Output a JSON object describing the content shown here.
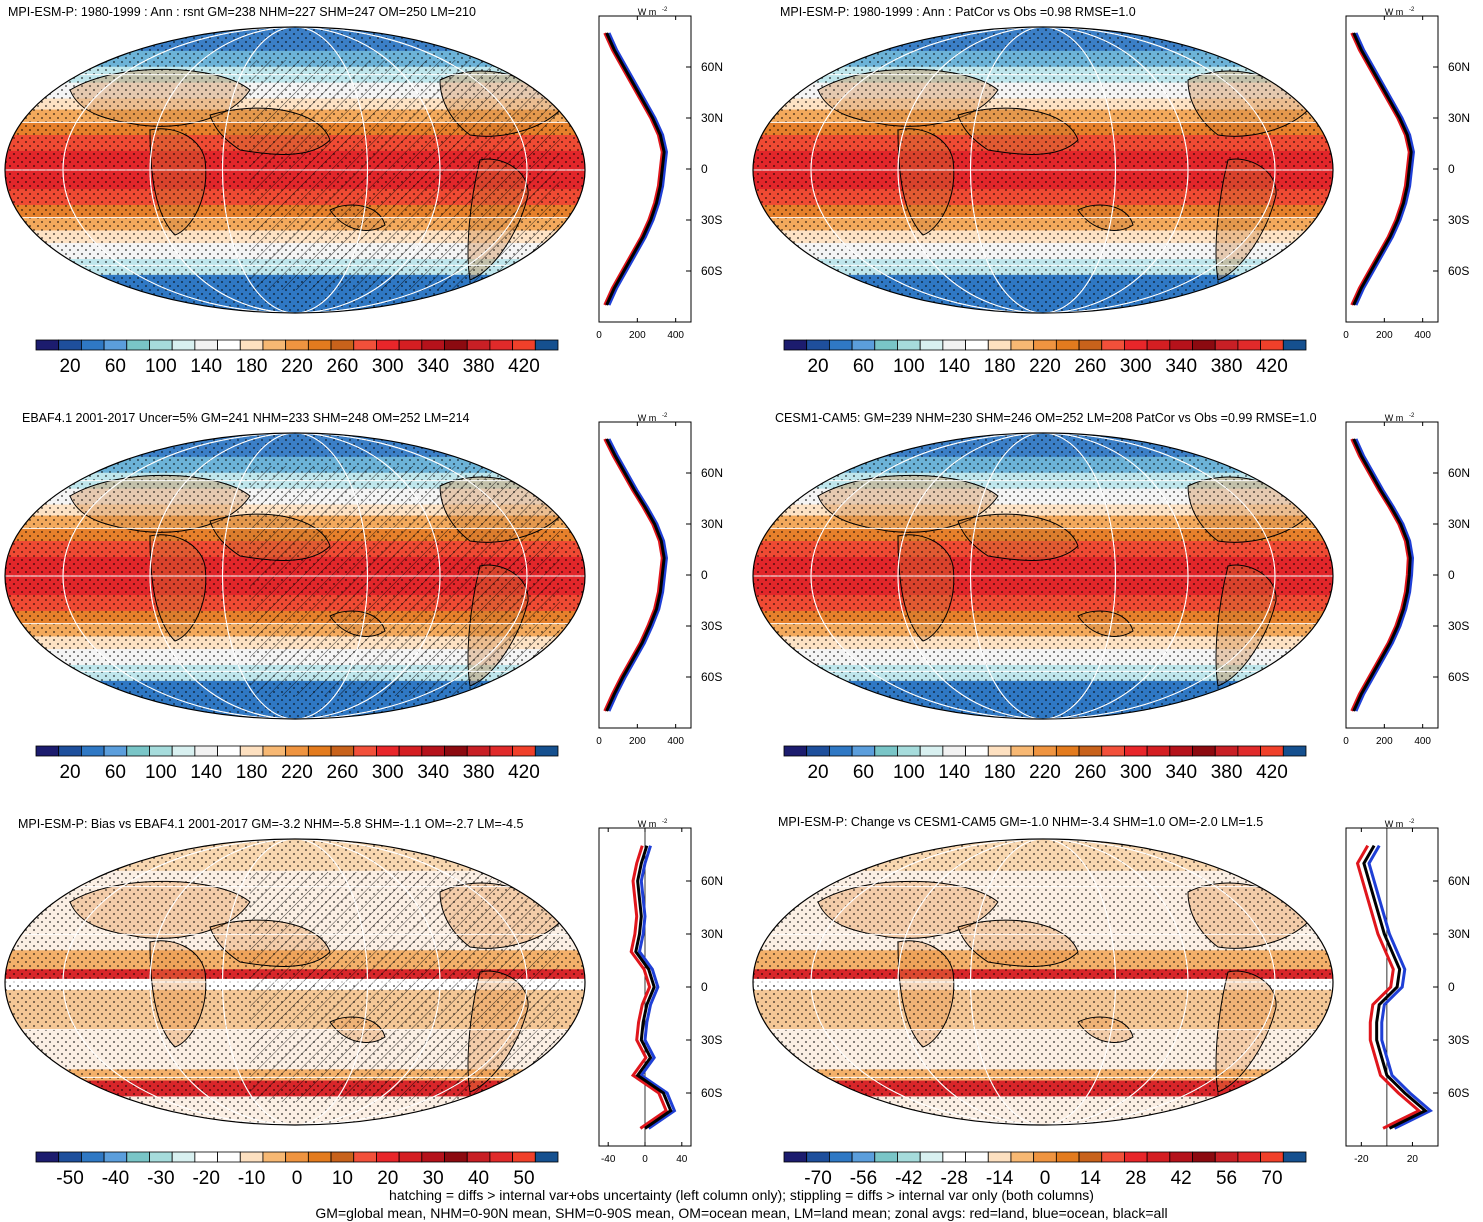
{
  "panels": [
    {
      "title": "MPI-ESM-P: 1980-1999 : Ann : rsnt GM=238 NHM=227 SHM=247 OM=250 LM=210",
      "kind": "clim",
      "hatch": true
    },
    {
      "title": "MPI-ESM-P: 1980-1999 : Ann : PatCor vs Obs =0.98 RMSE=1.0",
      "kind": "clim",
      "hatch": false
    },
    {
      "title": "EBAF4.1 2001-2017 Uncer=5% GM=241 NHM=233 SHM=248 OM=252 LM=214",
      "kind": "clim",
      "hatch": true
    },
    {
      "title": "CESM1-CAM5: GM=239 NHM=230 SHM=246 OM=252 LM=208 PatCor vs Obs =0.99 RMSE=1.0",
      "kind": "clim",
      "hatch": false
    },
    {
      "title": "MPI-ESM-P: Bias vs EBAF4.1 2001-2017 GM=-3.2 NHM=-5.8 SHM=-1.1 OM=-2.7 LM=-4.5",
      "kind": "diff",
      "hatch": true
    },
    {
      "title": "MPI-ESM-P: Change vs CESM1-CAM5 GM=-1.0 NHM=-3.4 SHM=1.0 OM=-2.0 LM=1.5",
      "kind": "diff",
      "hatch": false
    }
  ],
  "colorbars": {
    "clim": {
      "labels": [
        "20",
        "60",
        "100",
        "140",
        "180",
        "220",
        "260",
        "300",
        "340",
        "380",
        "420"
      ],
      "colors": [
        "#1c1c6e",
        "#1e4f9c",
        "#2f78c4",
        "#5b9edc",
        "#79c5c7",
        "#a6dcdc",
        "#d8f0f0",
        "#f2f2f2",
        "#ffffff",
        "#fde0c0",
        "#f7b873",
        "#ef9440",
        "#e37b1e",
        "#c8621b",
        "#f2503a",
        "#e8262a",
        "#d41e22",
        "#b5121b",
        "#8c0a10",
        "#c81f25",
        "#e02a2a",
        "#f0402a",
        "#15508f"
      ]
    },
    "bias": {
      "labels": [
        "-50",
        "-40",
        "-30",
        "-20",
        "-10",
        "0",
        "10",
        "20",
        "30",
        "40",
        "50"
      ]
    },
    "change": {
      "labels": [
        "-70",
        "-56",
        "-42",
        "-28",
        "-14",
        "0",
        "14",
        "28",
        "42",
        "56",
        "70"
      ]
    }
  },
  "zonal_axis": {
    "unit": "W m",
    "unit_sup": "-2",
    "lat_labels": [
      "60N",
      "30N",
      "0",
      "30S",
      "60S"
    ],
    "clim_x_ticks": [
      "0",
      "200",
      "400"
    ],
    "bias_x_ticks": [
      "-40",
      "0",
      "40"
    ],
    "change_x_ticks": [
      "-20",
      "20"
    ]
  },
  "chart_data": {
    "type": "line",
    "series_legend": {
      "red": "land",
      "blue": "ocean",
      "black": "all"
    },
    "lat": [
      80,
      70,
      60,
      50,
      40,
      30,
      20,
      10,
      0,
      -10,
      -20,
      -30,
      -40,
      -50,
      -60,
      -70,
      -80
    ],
    "clim_mpi_all": [
      40,
      80,
      130,
      180,
      230,
      280,
      320,
      340,
      330,
      320,
      300,
      270,
      230,
      180,
      130,
      80,
      40
    ],
    "clim_obs_all": [
      40,
      85,
      135,
      185,
      240,
      290,
      325,
      340,
      330,
      320,
      300,
      265,
      225,
      175,
      125,
      80,
      40
    ],
    "clim_cesm_all": [
      40,
      80,
      130,
      180,
      235,
      285,
      320,
      335,
      330,
      320,
      300,
      270,
      230,
      180,
      130,
      80,
      40
    ],
    "bias_all": [
      2,
      -4,
      -8,
      -6,
      -4,
      -6,
      -10,
      4,
      10,
      2,
      -2,
      -4,
      6,
      -8,
      20,
      28,
      0
    ],
    "change_all": [
      -10,
      -18,
      -14,
      -10,
      -6,
      -2,
      4,
      10,
      8,
      -6,
      -8,
      -8,
      -4,
      0,
      14,
      30,
      2
    ]
  },
  "footer": {
    "line1": "hatching = diffs > internal var+obs uncertainty (left column only); stippling = diffs > internal var only (both columns)",
    "line2": "GM=global mean, NHM=0-90N mean, SHM=0-90S mean, OM=ocean mean, LM=land mean; zonal avgs: red=land, blue=ocean, black=all"
  }
}
